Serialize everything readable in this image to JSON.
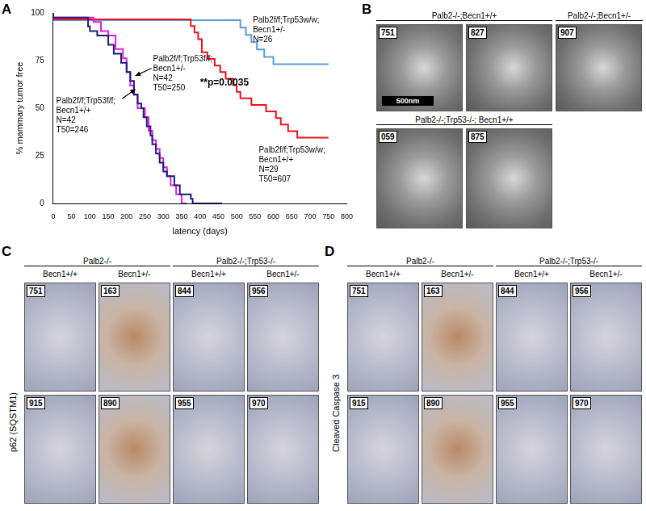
{
  "chart_data": {
    "type": "line",
    "line_style": "step",
    "xlabel": "latency (days)",
    "ylabel": "% mammary tumor free",
    "xlim": [
      0,
      800
    ],
    "xticks": [
      0,
      50,
      100,
      150,
      200,
      250,
      300,
      350,
      400,
      450,
      500,
      550,
      600,
      650,
      700,
      750,
      800
    ],
    "ylim": [
      0,
      100
    ],
    "yticks": [
      0,
      25,
      50,
      75,
      100
    ],
    "grid": false,
    "annotations": [
      {
        "text": "**p=0.0035"
      }
    ],
    "series": [
      {
        "name": "Palb2f/f;Trp53f/f;Becn1+/+",
        "annotation": [
          "N=42",
          "T50=246"
        ],
        "color": "#1c1c78",
        "x": [
          0,
          95,
          100,
          120,
          150,
          165,
          185,
          200,
          210,
          220,
          230,
          240,
          246,
          255,
          265,
          270,
          280,
          290,
          300,
          310,
          330,
          345,
          375,
          380,
          460
        ],
        "values": [
          100,
          97.6,
          92.9,
          90.5,
          88.1,
          83.3,
          78.6,
          73.8,
          69,
          64.3,
          57.1,
          52.4,
          50,
          45.2,
          40.5,
          35.7,
          31,
          26.2,
          21.4,
          16.7,
          14.3,
          9.5,
          4.8,
          2.4,
          0
        ]
      },
      {
        "name": "Palb2f/f;Trp53f/f;Becn1+/-",
        "annotation": [
          "N=42",
          "T50=250"
        ],
        "color": "#e21ee2",
        "x": [
          0,
          110,
          130,
          150,
          170,
          190,
          200,
          210,
          220,
          230,
          250,
          260,
          270,
          280,
          290,
          300,
          310,
          320,
          335,
          350,
          365
        ],
        "values": [
          100,
          97.6,
          95.2,
          90.5,
          88.1,
          81,
          76.2,
          69,
          61.9,
          57.1,
          50,
          45.2,
          38.1,
          33.3,
          28.6,
          23.8,
          19,
          14.3,
          9.5,
          4.8,
          0
        ]
      },
      {
        "name": "Palb2f/f;Trp53w/w;Becn1+/+",
        "annotation": [
          "N=29",
          "T50=607"
        ],
        "color": "#e8141e",
        "x": [
          0,
          375,
          385,
          395,
          405,
          420,
          440,
          455,
          470,
          490,
          500,
          510,
          540,
          580,
          607,
          620,
          640,
          665,
          700,
          750
        ],
        "values": [
          100,
          96.6,
          93.1,
          89.7,
          86.2,
          79.3,
          75.9,
          72.4,
          69,
          65.5,
          62.1,
          58.6,
          55.2,
          51.7,
          48.3,
          44.8,
          41.4,
          37.9,
          34.5,
          34.5
        ]
      },
      {
        "name": "Palb2f/f;Trp53w/w;Becn1+/-",
        "annotation": [
          "N=26"
        ],
        "color": "#5b9bd5",
        "x": [
          0,
          510,
          525,
          540,
          555,
          575,
          600,
          690,
          750
        ],
        "values": [
          100,
          96.2,
          92.3,
          88.5,
          84.6,
          80.8,
          76.9,
          73.1,
          73.1
        ]
      }
    ]
  },
  "figure": {
    "panel_labels": [
      "A",
      "B",
      "C",
      "D"
    ],
    "panel_b": {
      "scale_bar": "500nm",
      "groups": [
        {
          "header": "Palb2-/-;Becn1+/+",
          "images": [
            "751",
            "827"
          ]
        },
        {
          "header": "Palb2-/-;Becn1+/-",
          "images": [
            "907"
          ]
        },
        {
          "header": "Palb2-/-;Trp53-/-; Becn1+/+",
          "images": [
            "059",
            "875"
          ]
        }
      ]
    },
    "panel_c": {
      "row_label": "p62 (SQSTM1)",
      "genotypes": [
        {
          "header": "Palb2-/-",
          "columns": [
            "Becn1+/+",
            "Becn1+/-"
          ]
        },
        {
          "header": "Palb2-/-;Trp53-/-",
          "columns": [
            "Becn1+/+",
            "Becn1+/-"
          ]
        }
      ],
      "rows": [
        [
          "751",
          "163",
          "844",
          "956"
        ],
        [
          "915",
          "890",
          "955",
          "970"
        ]
      ]
    },
    "panel_d": {
      "row_label": "Cleaved Caspase 3",
      "genotypes": [
        {
          "header": "Palb2-/-",
          "columns": [
            "Becn1+/+",
            "Becn1+/-"
          ]
        },
        {
          "header": "Palb2-/-;Trp53-/-",
          "columns": [
            "Becn1+/+",
            "Becn1+/-"
          ]
        }
      ],
      "rows": [
        [
          "751",
          "163",
          "844",
          "956"
        ],
        [
          "915",
          "890",
          "955",
          "970"
        ]
      ]
    }
  }
}
